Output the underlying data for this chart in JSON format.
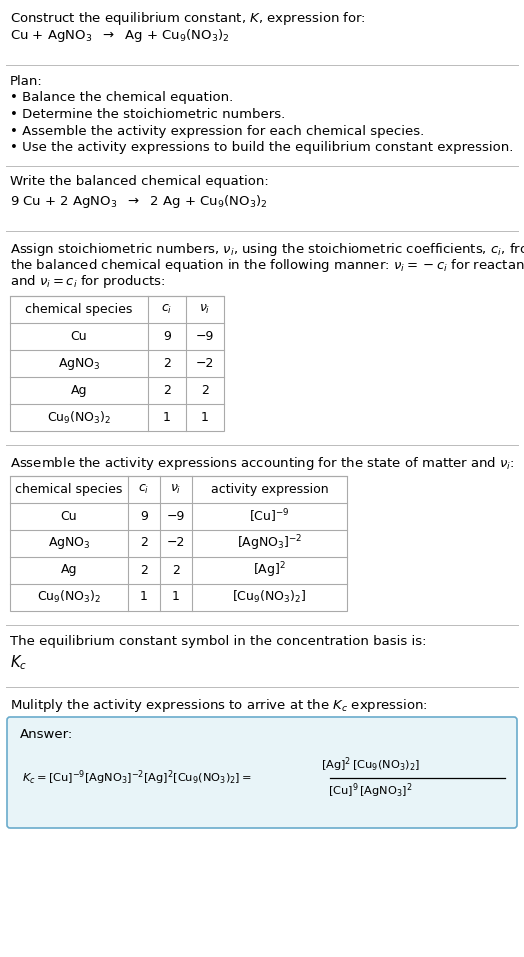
{
  "bg_color": "#ffffff",
  "text_color": "#000000",
  "title_line1": "Construct the equilibrium constant, $K$, expression for:",
  "title_line2": "Cu + AgNO$_3$  $\\rightarrow$  Ag + Cu$_9$(NO$_3$)$_2$",
  "plan_header": "Plan:",
  "plan_bullets": [
    "• Balance the chemical equation.",
    "• Determine the stoichiometric numbers.",
    "• Assemble the activity expression for each chemical species.",
    "• Use the activity expressions to build the equilibrium constant expression."
  ],
  "balanced_header": "Write the balanced chemical equation:",
  "balanced_eq": "9 Cu + 2 AgNO$_3$  $\\rightarrow$  2 Ag + Cu$_9$(NO$_3$)$_2$",
  "stoich_lines": [
    "Assign stoichiometric numbers, $\\nu_i$, using the stoichiometric coefficients, $c_i$, from",
    "the balanced chemical equation in the following manner: $\\nu_i = -c_i$ for reactants",
    "and $\\nu_i = c_i$ for products:"
  ],
  "table1_headers": [
    "chemical species",
    "$c_i$",
    "$\\nu_i$"
  ],
  "table1_rows": [
    [
      "Cu",
      "9",
      "−9"
    ],
    [
      "AgNO$_3$",
      "2",
      "−2"
    ],
    [
      "Ag",
      "2",
      "2"
    ],
    [
      "Cu$_9$(NO$_3$)$_2$",
      "1",
      "1"
    ]
  ],
  "assemble_header": "Assemble the activity expressions accounting for the state of matter and $\\nu_i$:",
  "table2_headers": [
    "chemical species",
    "$c_i$",
    "$\\nu_i$",
    "activity expression"
  ],
  "table2_rows": [
    [
      "Cu",
      "9",
      "−9",
      "[Cu]$^{-9}$"
    ],
    [
      "AgNO$_3$",
      "2",
      "−2",
      "[AgNO$_3$]$^{-2}$"
    ],
    [
      "Ag",
      "2",
      "2",
      "[Ag]$^2$"
    ],
    [
      "Cu$_9$(NO$_3$)$_2$",
      "1",
      "1",
      "[Cu$_9$(NO$_3$)$_2$]"
    ]
  ],
  "kc_text": "The equilibrium constant symbol in the concentration basis is:",
  "kc_symbol": "$K_c$",
  "multiply_text": "Mulitply the activity expressions to arrive at the $K_c$ expression:",
  "answer_label": "Answer:",
  "answer_box_color": "#e8f4f8",
  "answer_box_border": "#6aabcc",
  "line_color": "#bbbbbb",
  "table_line_color": "#aaaaaa"
}
